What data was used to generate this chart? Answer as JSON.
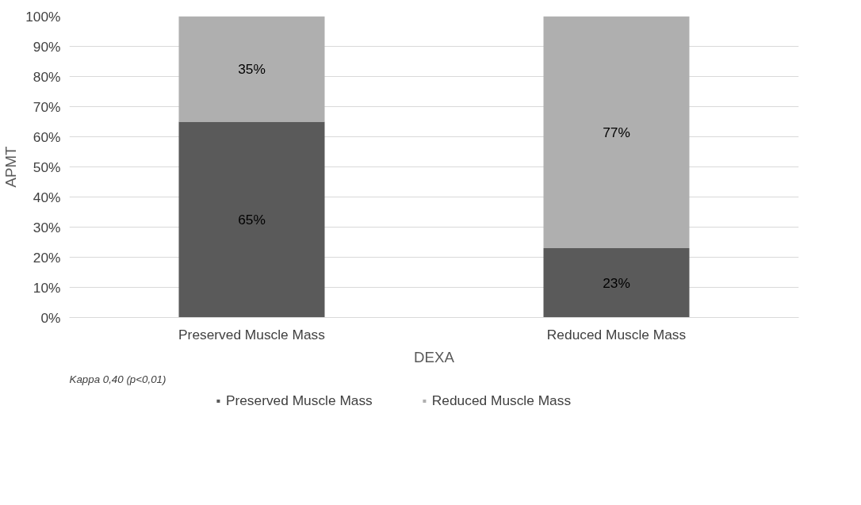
{
  "chart_data": {
    "type": "bar",
    "stacked": true,
    "xlabel": "DEXA",
    "ylabel": "APMT",
    "categories": [
      "Preserved Muscle Mass",
      "Reduced Muscle Mass"
    ],
    "series": [
      {
        "name": "Preserved Muscle Mass",
        "color": "#5a5a5a",
        "values": [
          65,
          23
        ],
        "value_labels": [
          "65%",
          "23%"
        ]
      },
      {
        "name": "Reduced Muscle Mass",
        "color": "#afafaf",
        "values": [
          35,
          77
        ],
        "value_labels": [
          "35%",
          "77%"
        ]
      }
    ],
    "ylim": [
      0,
      100
    ],
    "yticks": [
      {
        "value": 0,
        "label": "0%"
      },
      {
        "value": 10,
        "label": "10%"
      },
      {
        "value": 20,
        "label": "20%"
      },
      {
        "value": 30,
        "label": "30%"
      },
      {
        "value": 40,
        "label": "40%"
      },
      {
        "value": 50,
        "label": "50%"
      },
      {
        "value": 60,
        "label": "60%"
      },
      {
        "value": 70,
        "label": "70%"
      },
      {
        "value": 80,
        "label": "80%"
      },
      {
        "value": 90,
        "label": "90%"
      },
      {
        "value": 100,
        "label": "100%"
      }
    ],
    "grid": "y",
    "legend": "bottom",
    "annotations": [
      "Kappa 0,40 (p<0,01)"
    ]
  }
}
